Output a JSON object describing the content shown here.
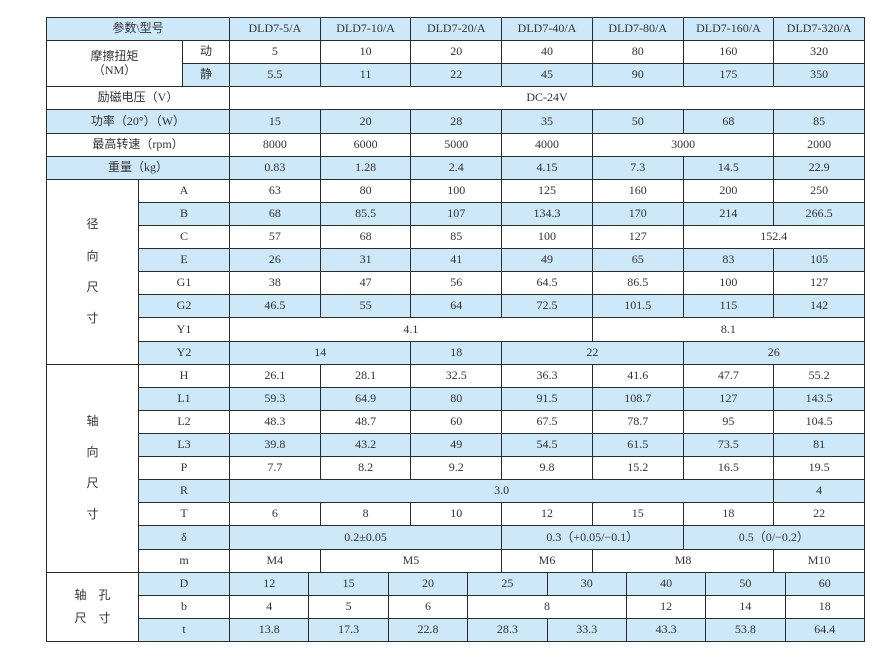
{
  "accent_color": "#cde8f8",
  "header": {
    "label": "参数\\型号",
    "models": [
      "DLD7-5/A",
      "DLD7-10/A",
      "DLD7-20/A",
      "DLD7-40/A",
      "DLD7-80/A",
      "DLD7-160/A",
      "DLD7-320/A"
    ]
  },
  "friction": {
    "label": "摩擦扭矩\n（NM）",
    "rows": [
      {
        "label": "动",
        "blue": false,
        "cells": [
          {
            "v": "5",
            "span": 1
          },
          {
            "v": "10",
            "span": 1
          },
          {
            "v": "20",
            "span": 1
          },
          {
            "v": "40",
            "span": 1
          },
          {
            "v": "80",
            "span": 1
          },
          {
            "v": "160",
            "span": 1
          },
          {
            "v": "320",
            "span": 1
          }
        ]
      },
      {
        "label": "静",
        "blue": true,
        "cells": [
          {
            "v": "5.5",
            "span": 1
          },
          {
            "v": "11",
            "span": 1
          },
          {
            "v": "22",
            "span": 1
          },
          {
            "v": "45",
            "span": 1
          },
          {
            "v": "90",
            "span": 1
          },
          {
            "v": "175",
            "span": 1
          },
          {
            "v": "350",
            "span": 1
          }
        ]
      }
    ]
  },
  "general_rows": [
    {
      "label": "励磁电压（V）",
      "blue": false,
      "cells": [
        {
          "v": "DC-24V",
          "span": 7
        }
      ]
    },
    {
      "label": "功率（20°）（W）",
      "blue": true,
      "cells": [
        {
          "v": "15",
          "span": 1
        },
        {
          "v": "20",
          "span": 1
        },
        {
          "v": "28",
          "span": 1
        },
        {
          "v": "35",
          "span": 1
        },
        {
          "v": "50",
          "span": 1
        },
        {
          "v": "68",
          "span": 1
        },
        {
          "v": "85",
          "span": 1
        }
      ]
    },
    {
      "label": "最高转速（rpm）",
      "blue": false,
      "cells": [
        {
          "v": "8000",
          "span": 1
        },
        {
          "v": "6000",
          "span": 1
        },
        {
          "v": "5000",
          "span": 1
        },
        {
          "v": "4000",
          "span": 1
        },
        {
          "v": "3000",
          "span": 2
        },
        {
          "v": "2000",
          "span": 1
        }
      ]
    },
    {
      "label": "重量（kg）",
      "blue": true,
      "cells": [
        {
          "v": "0.83",
          "span": 1
        },
        {
          "v": "1.28",
          "span": 1
        },
        {
          "v": "2.4",
          "span": 1
        },
        {
          "v": "4.15",
          "span": 1
        },
        {
          "v": "7.3",
          "span": 1
        },
        {
          "v": "14.5",
          "span": 1
        },
        {
          "v": "22.9",
          "span": 1
        }
      ]
    }
  ],
  "sections": [
    {
      "label": "径\n向\n尺\n寸",
      "columns": 7,
      "rows": [
        {
          "label": "A",
          "blue": false,
          "cells": [
            {
              "v": "63",
              "span": 1
            },
            {
              "v": "80",
              "span": 1
            },
            {
              "v": "100",
              "span": 1
            },
            {
              "v": "125",
              "span": 1
            },
            {
              "v": "160",
              "span": 1
            },
            {
              "v": "200",
              "span": 1
            },
            {
              "v": "250",
              "span": 1
            }
          ]
        },
        {
          "label": "B",
          "blue": true,
          "cells": [
            {
              "v": "68",
              "span": 1
            },
            {
              "v": "85.5",
              "span": 1
            },
            {
              "v": "107",
              "span": 1
            },
            {
              "v": "134.3",
              "span": 1
            },
            {
              "v": "170",
              "span": 1
            },
            {
              "v": "214",
              "span": 1
            },
            {
              "v": "266.5",
              "span": 1
            }
          ]
        },
        {
          "label": "C",
          "blue": false,
          "cells": [
            {
              "v": "57",
              "span": 1
            },
            {
              "v": "68",
              "span": 1
            },
            {
              "v": "85",
              "span": 1
            },
            {
              "v": "100",
              "span": 1
            },
            {
              "v": "127",
              "span": 1
            },
            {
              "v": "152.4",
              "span": 2
            }
          ]
        },
        {
          "label": "E",
          "blue": true,
          "cells": [
            {
              "v": "26",
              "span": 1
            },
            {
              "v": "31",
              "span": 1
            },
            {
              "v": "41",
              "span": 1
            },
            {
              "v": "49",
              "span": 1
            },
            {
              "v": "65",
              "span": 1
            },
            {
              "v": "83",
              "span": 1
            },
            {
              "v": "105",
              "span": 1
            }
          ]
        },
        {
          "label": "G1",
          "blue": false,
          "cells": [
            {
              "v": "38",
              "span": 1
            },
            {
              "v": "47",
              "span": 1
            },
            {
              "v": "56",
              "span": 1
            },
            {
              "v": "64.5",
              "span": 1
            },
            {
              "v": "86.5",
              "span": 1
            },
            {
              "v": "100",
              "span": 1
            },
            {
              "v": "127",
              "span": 1
            }
          ]
        },
        {
          "label": "G2",
          "blue": true,
          "cells": [
            {
              "v": "46.5",
              "span": 1
            },
            {
              "v": "55",
              "span": 1
            },
            {
              "v": "64",
              "span": 1
            },
            {
              "v": "72.5",
              "span": 1
            },
            {
              "v": "101.5",
              "span": 1
            },
            {
              "v": "115",
              "span": 1
            },
            {
              "v": "142",
              "span": 1
            }
          ]
        },
        {
          "label": "Y1",
          "blue": false,
          "cells": [
            {
              "v": "4.1",
              "span": 4
            },
            {
              "v": "8.1",
              "span": 3
            }
          ]
        },
        {
          "label": "Y2",
          "blue": true,
          "cells": [
            {
              "v": "14",
              "span": 2
            },
            {
              "v": "18",
              "span": 1
            },
            {
              "v": "22",
              "span": 2
            },
            {
              "v": "26",
              "span": 2
            }
          ]
        }
      ]
    },
    {
      "label": "轴\n向\n尺\n寸",
      "columns": 7,
      "rows": [
        {
          "label": "H",
          "blue": false,
          "cells": [
            {
              "v": "26.1",
              "span": 1
            },
            {
              "v": "28.1",
              "span": 1
            },
            {
              "v": "32.5",
              "span": 1
            },
            {
              "v": "36.3",
              "span": 1
            },
            {
              "v": "41.6",
              "span": 1
            },
            {
              "v": "47.7",
              "span": 1
            },
            {
              "v": "55.2",
              "span": 1
            }
          ]
        },
        {
          "label": "L1",
          "blue": true,
          "cells": [
            {
              "v": "59.3",
              "span": 1
            },
            {
              "v": "64.9",
              "span": 1
            },
            {
              "v": "80",
              "span": 1
            },
            {
              "v": "91.5",
              "span": 1
            },
            {
              "v": "108.7",
              "span": 1
            },
            {
              "v": "127",
              "span": 1
            },
            {
              "v": "143.5",
              "span": 1
            }
          ]
        },
        {
          "label": "L2",
          "blue": false,
          "cells": [
            {
              "v": "48.3",
              "span": 1
            },
            {
              "v": "48.7",
              "span": 1
            },
            {
              "v": "60",
              "span": 1
            },
            {
              "v": "67.5",
              "span": 1
            },
            {
              "v": "78.7",
              "span": 1
            },
            {
              "v": "95",
              "span": 1
            },
            {
              "v": "104.5",
              "span": 1
            }
          ]
        },
        {
          "label": "L3",
          "blue": true,
          "cells": [
            {
              "v": "39.8",
              "span": 1
            },
            {
              "v": "43.2",
              "span": 1
            },
            {
              "v": "49",
              "span": 1
            },
            {
              "v": "54.5",
              "span": 1
            },
            {
              "v": "61.5",
              "span": 1
            },
            {
              "v": "73.5",
              "span": 1
            },
            {
              "v": "81",
              "span": 1
            }
          ]
        },
        {
          "label": "P",
          "blue": false,
          "cells": [
            {
              "v": "7.7",
              "span": 1
            },
            {
              "v": "8.2",
              "span": 1
            },
            {
              "v": "9.2",
              "span": 1
            },
            {
              "v": "9.8",
              "span": 1
            },
            {
              "v": "15.2",
              "span": 1
            },
            {
              "v": "16.5",
              "span": 1
            },
            {
              "v": "19.5",
              "span": 1
            }
          ]
        },
        {
          "label": "R",
          "blue": true,
          "cells": [
            {
              "v": "3.0",
              "span": 6
            },
            {
              "v": "4",
              "span": 1
            }
          ]
        },
        {
          "label": "T",
          "blue": false,
          "cells": [
            {
              "v": "6",
              "span": 1
            },
            {
              "v": "8",
              "span": 1
            },
            {
              "v": "10",
              "span": 1
            },
            {
              "v": "12",
              "span": 1
            },
            {
              "v": "15",
              "span": 1
            },
            {
              "v": "18",
              "span": 1
            },
            {
              "v": "22",
              "span": 1
            }
          ]
        },
        {
          "label": "δ",
          "blue": true,
          "cells": [
            {
              "v": "0.2±0.05",
              "span": 3
            },
            {
              "v": "0.3（+0.05/−0.1）",
              "span": 2
            },
            {
              "v": "0.5（0/−0.2）",
              "span": 2
            }
          ]
        },
        {
          "label": "m",
          "blue": false,
          "cells": [
            {
              "v": "M4",
              "span": 1
            },
            {
              "v": "M5",
              "span": 2
            },
            {
              "v": "M6",
              "span": 1
            },
            {
              "v": "M8",
              "span": 2
            },
            {
              "v": "M10",
              "span": 1
            }
          ]
        }
      ]
    },
    {
      "label": "轴　孔\n尺　寸",
      "columns": 8,
      "rows": [
        {
          "label": "D",
          "blue": true,
          "cells": [
            {
              "v": "12",
              "span": 1
            },
            {
              "v": "15",
              "span": 1
            },
            {
              "v": "20",
              "span": 1
            },
            {
              "v": "25",
              "span": 1
            },
            {
              "v": "30",
              "span": 1
            },
            {
              "v": "40",
              "span": 1
            },
            {
              "v": "50",
              "span": 1
            },
            {
              "v": "60",
              "span": 1
            }
          ]
        },
        {
          "label": "b",
          "blue": false,
          "cells": [
            {
              "v": "4",
              "span": 1
            },
            {
              "v": "5",
              "span": 1
            },
            {
              "v": "6",
              "span": 1
            },
            {
              "v": "8",
              "span": 2
            },
            {
              "v": "12",
              "span": 1
            },
            {
              "v": "14",
              "span": 1
            },
            {
              "v": "18",
              "span": 1
            }
          ]
        },
        {
          "label": "t",
          "blue": true,
          "cells": [
            {
              "v": "13.8",
              "span": 1
            },
            {
              "v": "17.3",
              "span": 1
            },
            {
              "v": "22.8",
              "span": 1
            },
            {
              "v": "28.3",
              "span": 1
            },
            {
              "v": "33.3",
              "span": 1
            },
            {
              "v": "43.3",
              "span": 1
            },
            {
              "v": "53.8",
              "span": 1
            },
            {
              "v": "64.4",
              "span": 1
            }
          ]
        }
      ]
    }
  ]
}
